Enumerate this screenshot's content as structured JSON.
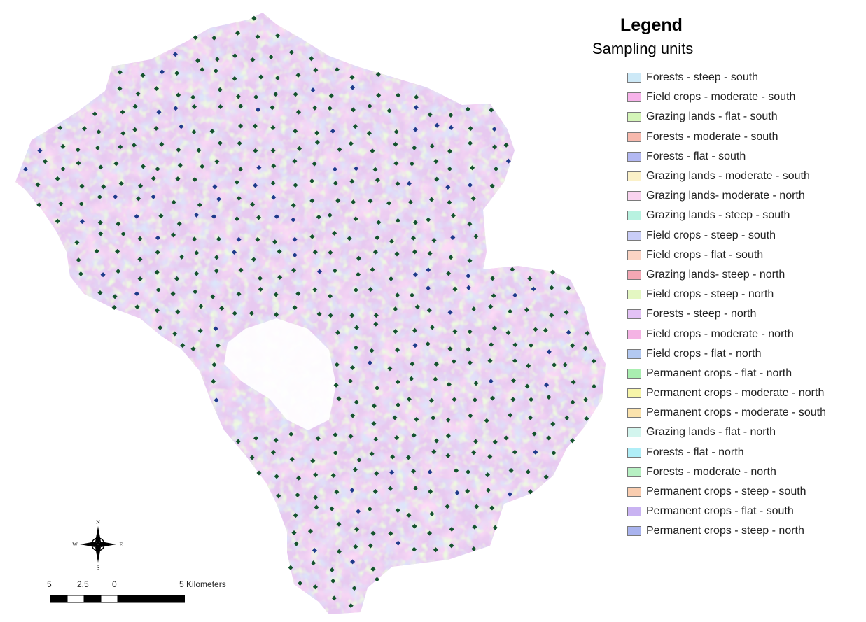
{
  "legend": {
    "title": "Legend",
    "subtitle": "Sampling units",
    "items": [
      {
        "label": "Forests - steep - south",
        "color": "#cde9f7"
      },
      {
        "label": "Field crops - moderate - south",
        "color": "#f7b3ea"
      },
      {
        "label": "Grazing lands - flat - south",
        "color": "#d4f5b8"
      },
      {
        "label": "Forests - moderate - south",
        "color": "#f7b9ad"
      },
      {
        "label": "Forests - flat - south",
        "color": "#b3b8f2"
      },
      {
        "label": "Grazing lands - moderate - south",
        "color": "#fbf1c8"
      },
      {
        "label": "Grazing lands- moderate - north",
        "color": "#f9d3ef"
      },
      {
        "label": "Grazing lands - steep - south",
        "color": "#b8f2e0"
      },
      {
        "label": "Field crops - steep - south",
        "color": "#c9cdf7"
      },
      {
        "label": "Field crops - flat - south",
        "color": "#fbd4c4"
      },
      {
        "label": "Grazing lands- steep - north",
        "color": "#f3a7b4"
      },
      {
        "label": "Field crops - steep - north",
        "color": "#e4f7c2"
      },
      {
        "label": "Forests - steep - north",
        "color": "#e3c2f5"
      },
      {
        "label": "Field crops - moderate - north",
        "color": "#f4b3e4"
      },
      {
        "label": "Field crops - flat - north",
        "color": "#b3c9f2"
      },
      {
        "label": "Permanent crops - flat - north",
        "color": "#a9eeb0"
      },
      {
        "label": "Permanent crops - moderate - north",
        "color": "#f7f5a9"
      },
      {
        "label": "Permanent crops - moderate - south",
        "color": "#fbe3ad"
      },
      {
        "label": "Grazing lands - flat - north",
        "color": "#d3f5ee"
      },
      {
        "label": "Forests - flat - north",
        "color": "#b0eef7"
      },
      {
        "label": "Forests - moderate - north",
        "color": "#b7f0c3"
      },
      {
        "label": "Permanent crops - steep - south",
        "color": "#f9cdb0"
      },
      {
        "label": "Permanent crops - flat - south",
        "color": "#c9b3f2"
      },
      {
        "label": "Permanent crops - steep - north",
        "color": "#a9b3ee"
      }
    ]
  },
  "compass": {
    "n": "N",
    "s": "S",
    "e": "E",
    "w": "W"
  },
  "scale_bar": {
    "ticks": [
      "5",
      "2.5",
      "0",
      "5 Kilometers"
    ]
  },
  "colors": {
    "sample_point_green": "#14532d",
    "sample_point_blue": "#1e3a8a",
    "excluded_area": "#ffffff"
  }
}
